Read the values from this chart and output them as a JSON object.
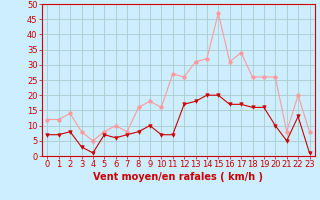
{
  "title": "",
  "xlabel": "Vent moyen/en rafales ( km/h )",
  "ylabel": "",
  "background_color": "#cceeff",
  "grid_color": "#aacccc",
  "x": [
    0,
    1,
    2,
    3,
    4,
    5,
    6,
    7,
    8,
    9,
    10,
    11,
    12,
    13,
    14,
    15,
    16,
    17,
    18,
    19,
    20,
    21,
    22,
    23
  ],
  "y_moyen": [
    7,
    7,
    8,
    3,
    1,
    7,
    6,
    7,
    8,
    10,
    7,
    7,
    17,
    18,
    20,
    20,
    17,
    17,
    16,
    16,
    10,
    5,
    13,
    1
  ],
  "y_rafales": [
    12,
    12,
    14,
    8,
    5,
    8,
    10,
    8,
    16,
    18,
    16,
    27,
    26,
    31,
    32,
    47,
    31,
    34,
    26,
    26,
    26,
    8,
    20,
    8
  ],
  "line_color_moyen": "#cc0000",
  "line_color_rafales": "#ff9999",
  "ylim": [
    0,
    50
  ],
  "yticks": [
    0,
    5,
    10,
    15,
    20,
    25,
    30,
    35,
    40,
    45,
    50
  ],
  "xticks": [
    0,
    1,
    2,
    3,
    4,
    5,
    6,
    7,
    8,
    9,
    10,
    11,
    12,
    13,
    14,
    15,
    16,
    17,
    18,
    19,
    20,
    21,
    22,
    23
  ],
  "xlabel_color": "#cc0000",
  "xlabel_fontsize": 7,
  "tick_fontsize": 6,
  "marker_size": 2.5,
  "line_width": 0.8
}
